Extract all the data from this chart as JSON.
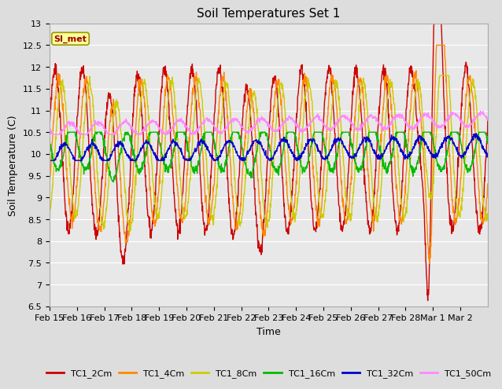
{
  "title": "Soil Temperatures Set 1",
  "xlabel": "Time",
  "ylabel": "Soil Temperature (C)",
  "ylim": [
    6.5,
    13.0
  ],
  "yticks": [
    6.5,
    7.0,
    7.5,
    8.0,
    8.5,
    9.0,
    9.5,
    10.0,
    10.5,
    11.0,
    11.5,
    12.0,
    12.5,
    13.0
  ],
  "x_labels": [
    "Feb 15",
    "Feb 16",
    "Feb 17",
    "Feb 18",
    "Feb 19",
    "Feb 20",
    "Feb 21",
    "Feb 22",
    "Feb 23",
    "Feb 24",
    "Feb 25",
    "Feb 26",
    "Feb 27",
    "Feb 28",
    "Mar 1",
    "Mar 2"
  ],
  "series_names": [
    "TC1_2Cm",
    "TC1_4Cm",
    "TC1_8Cm",
    "TC1_16Cm",
    "TC1_32Cm",
    "TC1_50Cm"
  ],
  "series_colors": [
    "#cc0000",
    "#ff8800",
    "#cccc00",
    "#00bb00",
    "#0000cc",
    "#ff88ff"
  ],
  "linewidth": 1.0,
  "annotation_text": "SI_met",
  "annotation_color": "#990000",
  "annotation_bg": "#ffff99",
  "annotation_border": "#999900",
  "fig_bg": "#dddddd",
  "plot_bg": "#e8e8e8",
  "grid_color": "#ffffff",
  "title_fontsize": 11,
  "axis_fontsize": 9,
  "tick_fontsize": 8
}
